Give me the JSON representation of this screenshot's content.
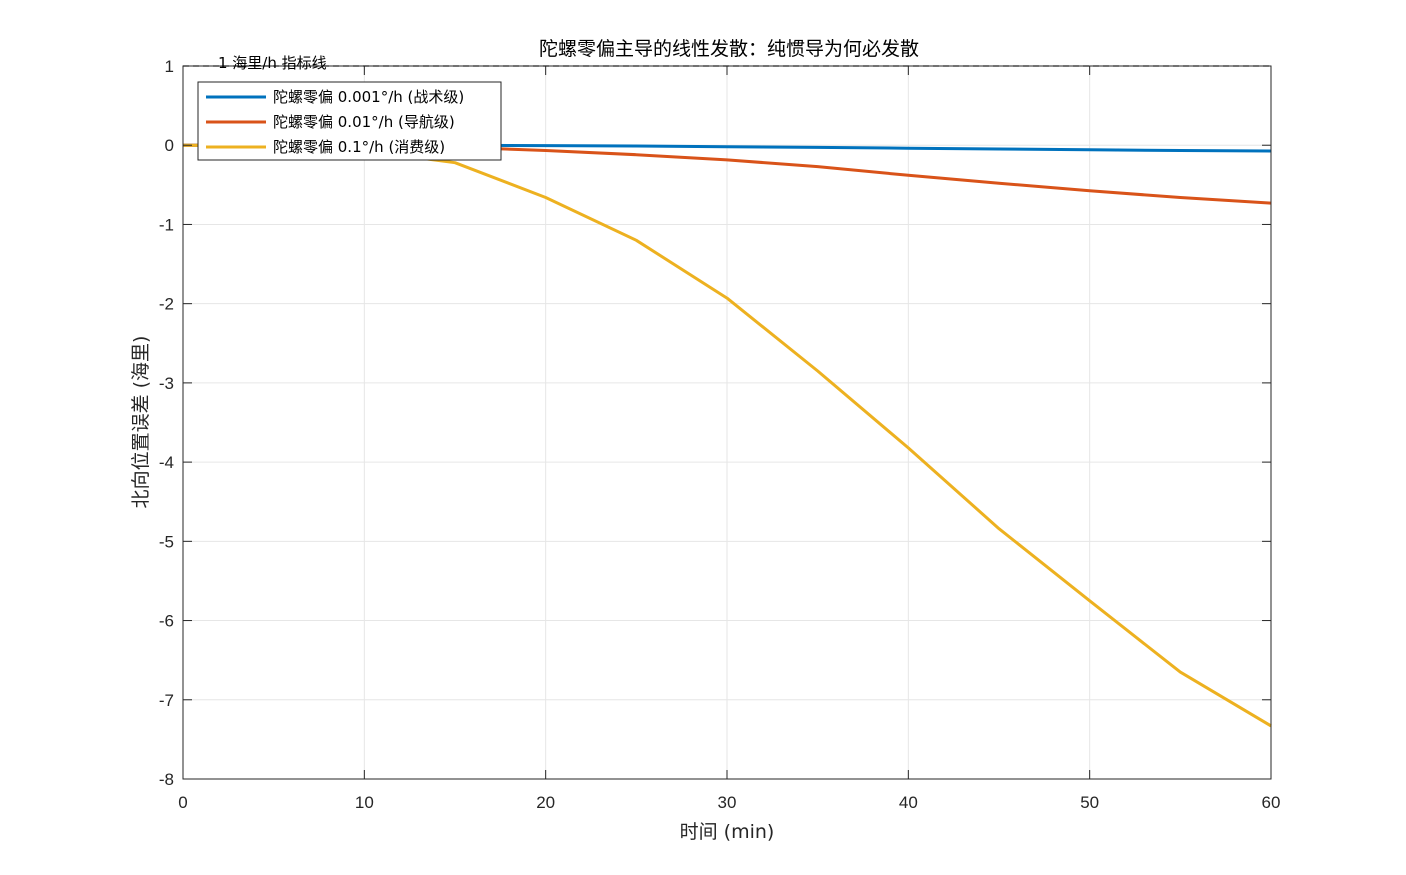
{
  "chart_data": {
    "type": "line",
    "title": "陀螺零偏主导的线性发散：纯惯导为何必发散",
    "xlabel": "时间 (min)",
    "ylabel": "北向位置误差 (海里)",
    "xlim": [
      0,
      60
    ],
    "ylim": [
      -8,
      1
    ],
    "xticks": [
      0,
      10,
      20,
      30,
      40,
      50,
      60
    ],
    "yticks": [
      1,
      0,
      -1,
      -2,
      -3,
      -4,
      -5,
      -6,
      -7,
      -8
    ],
    "grid": true,
    "legend_position": "top-left",
    "x": [
      0,
      5,
      10,
      15,
      20,
      25,
      30,
      35,
      40,
      45,
      50,
      55,
      60
    ],
    "series": [
      {
        "name": "陀螺零偏 0.001°/h (战术级)",
        "color": "#0072BD",
        "values": [
          0,
          0,
          0,
          -0.001,
          -0.005,
          -0.01,
          -0.019,
          -0.028,
          -0.038,
          -0.048,
          -0.058,
          -0.067,
          -0.073
        ]
      },
      {
        "name": "陀螺零偏 0.01°/h (导航级)",
        "color": "#D95319",
        "values": [
          0,
          -0.001,
          -0.005,
          -0.025,
          -0.066,
          -0.12,
          -0.185,
          -0.27,
          -0.38,
          -0.48,
          -0.575,
          -0.66,
          -0.73
        ]
      },
      {
        "name": "陀螺零偏 0.1°/h (消费级)",
        "color": "#EDB120",
        "values": [
          0,
          -0.009,
          -0.07,
          -0.22,
          -0.66,
          -1.2,
          -1.93,
          -2.85,
          -3.82,
          -4.84,
          -5.75,
          -6.65,
          -7.33
        ]
      }
    ],
    "reference_line": {
      "y": 1,
      "label": "1 海里/h 指标线",
      "style": "dashed",
      "color": "#000000"
    }
  }
}
